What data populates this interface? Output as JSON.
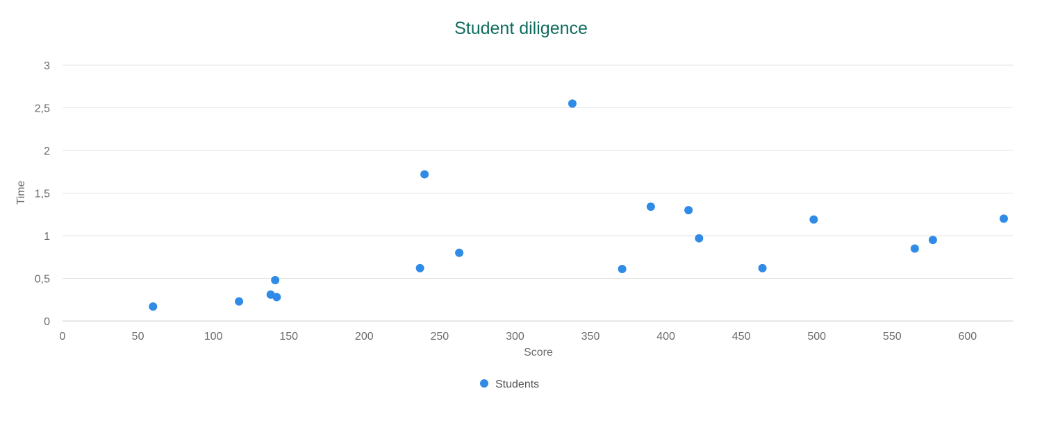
{
  "chart_data": {
    "type": "scatter",
    "title": "Student diligence",
    "xlabel": "Score",
    "ylabel": "Time",
    "xlim": [
      0,
      630
    ],
    "ylim": [
      0,
      3
    ],
    "x_ticks": [
      "0",
      "50",
      "100",
      "150",
      "200",
      "250",
      "300",
      "350",
      "400",
      "450",
      "500",
      "550",
      "600"
    ],
    "y_ticks": [
      "0",
      "0,5",
      "1",
      "1,5",
      "2",
      "2,5",
      "3"
    ],
    "grid": true,
    "legend_position": "bottom",
    "series": [
      {
        "name": "Students",
        "color": "#2f8be6",
        "points": [
          {
            "x": 60,
            "y": 0.17
          },
          {
            "x": 117,
            "y": 0.23
          },
          {
            "x": 138,
            "y": 0.31
          },
          {
            "x": 141,
            "y": 0.48
          },
          {
            "x": 142,
            "y": 0.28
          },
          {
            "x": 237,
            "y": 0.62
          },
          {
            "x": 240,
            "y": 1.72
          },
          {
            "x": 263,
            "y": 0.8
          },
          {
            "x": 338,
            "y": 2.55
          },
          {
            "x": 371,
            "y": 0.61
          },
          {
            "x": 390,
            "y": 1.34
          },
          {
            "x": 415,
            "y": 1.3
          },
          {
            "x": 422,
            "y": 0.97
          },
          {
            "x": 464,
            "y": 0.62
          },
          {
            "x": 498,
            "y": 1.19
          },
          {
            "x": 565,
            "y": 0.85
          },
          {
            "x": 577,
            "y": 0.95
          },
          {
            "x": 624,
            "y": 1.2
          }
        ]
      }
    ]
  }
}
